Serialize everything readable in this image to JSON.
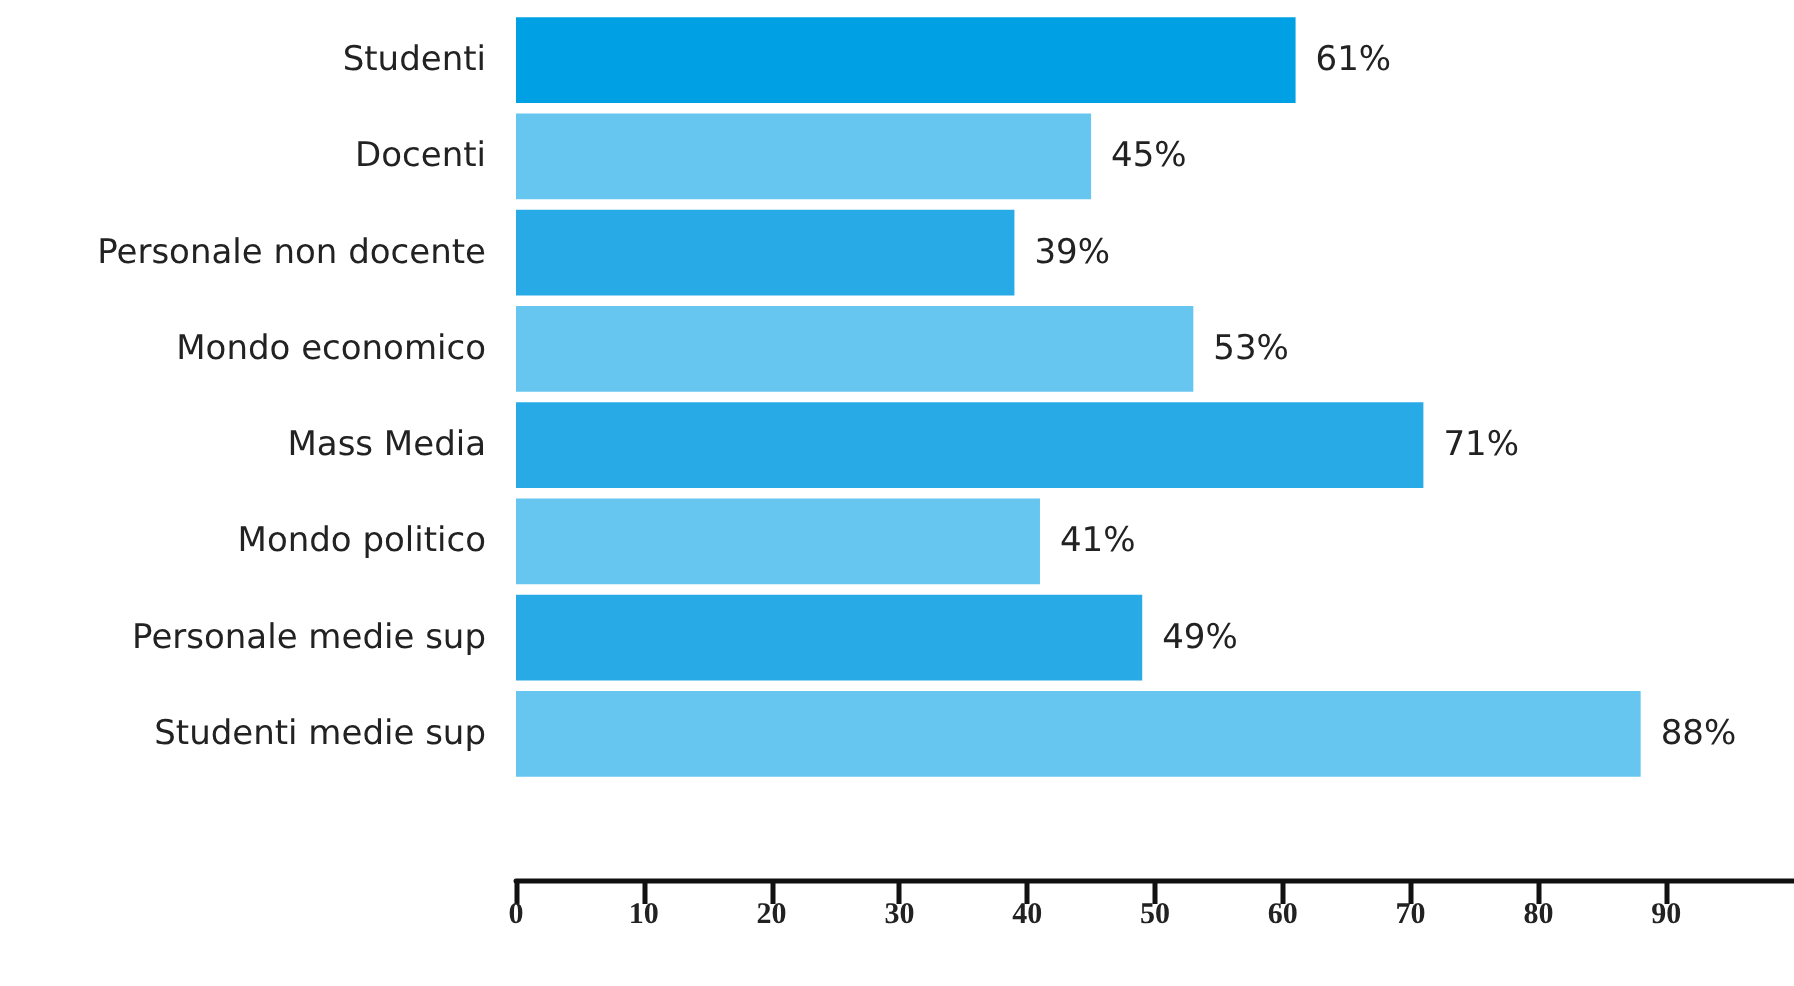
{
  "chart_data": {
    "type": "bar",
    "orientation": "horizontal",
    "categories": [
      "Studenti",
      "Docenti",
      "Personale non docente",
      "Mondo economico",
      "Mass Media",
      "Mondo politico",
      "Personale medie sup",
      "Studenti medie sup"
    ],
    "values": [
      61,
      45,
      39,
      53,
      71,
      41,
      49,
      88
    ],
    "colors": [
      "#00a0e4",
      "#66c6f0",
      "#27aae6",
      "#66c6f0",
      "#27aae6",
      "#66c6f0",
      "#27aae6",
      "#66c6f0"
    ],
    "value_labels": [
      "61%",
      "45%",
      "39%",
      "53%",
      "71%",
      "41%",
      "49%",
      "88%"
    ],
    "xlim": [
      0,
      100
    ],
    "xticks": [
      0,
      10,
      20,
      30,
      40,
      50,
      60,
      70,
      80,
      90
    ],
    "grid": false
  }
}
